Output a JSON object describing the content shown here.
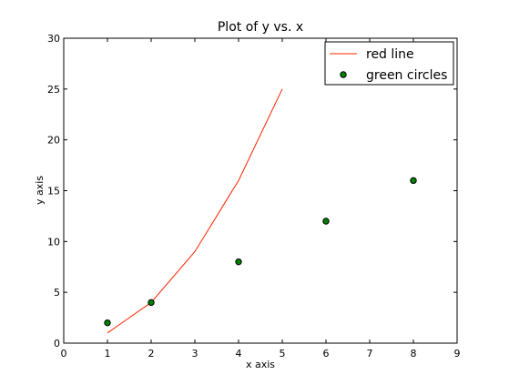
{
  "chart_data": {
    "type": "line",
    "title": "Plot of y vs. x",
    "xlabel": "x axis",
    "ylabel": "y axis",
    "xlim": [
      0,
      9
    ],
    "ylim": [
      0,
      30
    ],
    "xticks": [
      "0",
      "1",
      "2",
      "3",
      "4",
      "5",
      "6",
      "7",
      "8",
      "9"
    ],
    "yticks": [
      "0",
      "5",
      "10",
      "15",
      "20",
      "25",
      "30"
    ],
    "grid": false,
    "legend_position": "top-right",
    "series": [
      {
        "name": "red line",
        "kind": "line",
        "color": "#ff2200",
        "x": [
          1,
          2,
          3,
          4,
          5
        ],
        "y": [
          1,
          4,
          9,
          16,
          25
        ]
      },
      {
        "name": "green circles",
        "kind": "scatter",
        "color": "#008000",
        "x": [
          1,
          2,
          4,
          6,
          8
        ],
        "y": [
          2,
          4,
          8,
          12,
          16
        ]
      }
    ]
  }
}
